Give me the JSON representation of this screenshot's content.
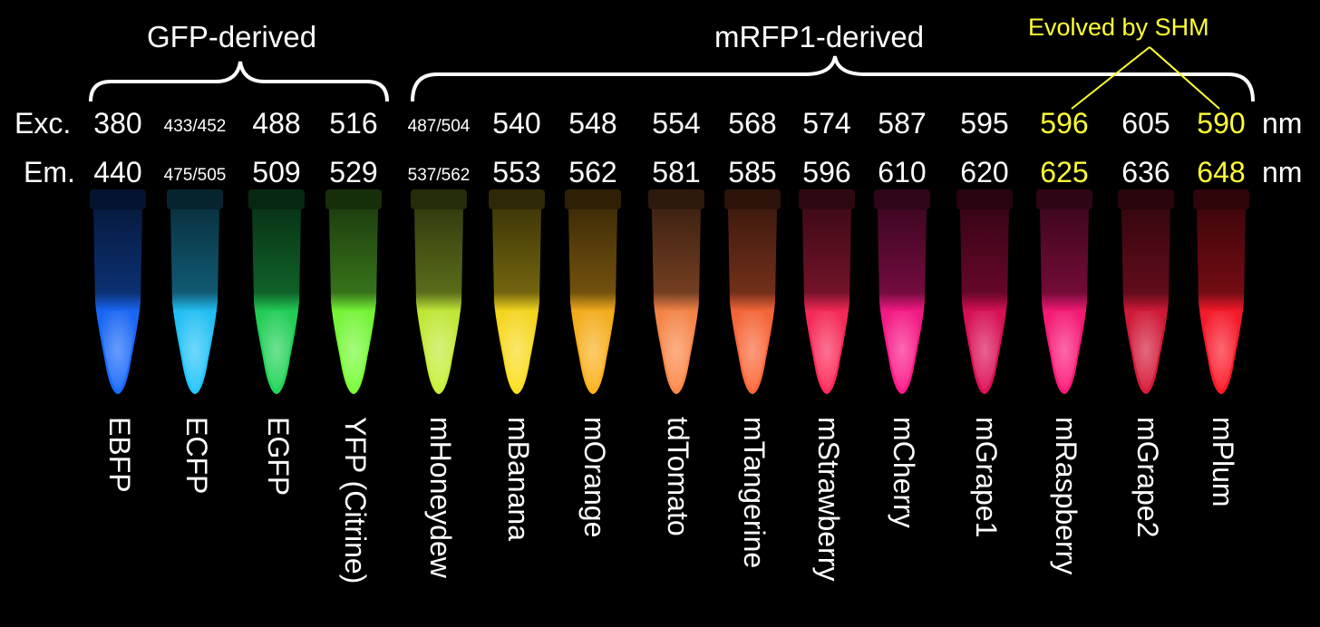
{
  "groups": {
    "gfp": "GFP-derived",
    "mrfp": "mRFP1-derived",
    "shm": "Evolved by SHM"
  },
  "rows": {
    "exc_label": "Exc.",
    "em_label": "Em.",
    "unit": "nm"
  },
  "proteins": [
    {
      "name": "EBFP",
      "exc": "380",
      "em": "440",
      "highlight": false,
      "color": "#1a6bff"
    },
    {
      "name": "ECFP",
      "exc": "433/452",
      "em": "475/505",
      "highlight": false,
      "color": "#24c8ff"
    },
    {
      "name": "EGFP",
      "exc": "488",
      "em": "509",
      "highlight": false,
      "color": "#22d65a"
    },
    {
      "name": "YFP (Citrine)",
      "exc": "516",
      "em": "529",
      "highlight": false,
      "color": "#7aff3a"
    },
    {
      "name": "mHoneydew",
      "exc": "487/504",
      "em": "537/562",
      "highlight": false,
      "color": "#c8f23a"
    },
    {
      "name": "mBanana",
      "exc": "540",
      "em": "553",
      "highlight": false,
      "color": "#ffe020"
    },
    {
      "name": "mOrange",
      "exc": "548",
      "em": "562",
      "highlight": false,
      "color": "#ffb41e"
    },
    {
      "name": "tdTomato",
      "exc": "554",
      "em": "581",
      "highlight": false,
      "color": "#ff8a4a"
    },
    {
      "name": "mTangerine",
      "exc": "568",
      "em": "585",
      "highlight": false,
      "color": "#ff6a3a"
    },
    {
      "name": "mStrawberry",
      "exc": "574",
      "em": "596",
      "highlight": false,
      "color": "#ff2a5a"
    },
    {
      "name": "mCherry",
      "exc": "587",
      "em": "610",
      "highlight": false,
      "color": "#ff1a8a"
    },
    {
      "name": "mGrape1",
      "exc": "595",
      "em": "620",
      "highlight": false,
      "color": "#e0105a"
    },
    {
      "name": "mRaspberry",
      "exc": "596",
      "em": "625",
      "highlight": true,
      "color": "#ff1a7a"
    },
    {
      "name": "mGrape2",
      "exc": "605",
      "em": "636",
      "highlight": false,
      "color": "#d81a3a"
    },
    {
      "name": "mPlum",
      "exc": "590",
      "em": "648",
      "highlight": true,
      "color": "#ff1a2a"
    }
  ]
}
